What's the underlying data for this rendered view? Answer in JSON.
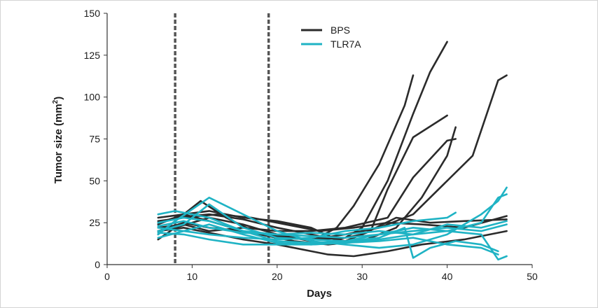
{
  "chart_data": {
    "type": "line",
    "xlabel": "Days",
    "ylabel": "Tumor size (mm",
    "ylabel_superscript": "2",
    "ylabel_close": ")",
    "xlim": [
      0,
      50
    ],
    "ylim": [
      0,
      150
    ],
    "x_ticks": [
      0,
      10,
      20,
      30,
      40,
      50
    ],
    "y_ticks": [
      0,
      25,
      50,
      75,
      100,
      125,
      150
    ],
    "x_tick_labels": [
      "0",
      "10",
      "20",
      "30",
      "40",
      "50"
    ],
    "y_tick_labels": [
      "0",
      "25",
      "50",
      "75",
      "100",
      "125",
      "150"
    ],
    "vertical_markers": [
      8,
      19
    ],
    "legend": [
      {
        "name": "BPS",
        "color": "#2b2b2b"
      },
      {
        "name": "TLR7A",
        "color": "#1fb3c4"
      }
    ],
    "legend_position": "top-center",
    "series": [
      {
        "group": "BPS",
        "points": [
          [
            6,
            15
          ],
          [
            8,
            22
          ],
          [
            12,
            28
          ],
          [
            16,
            24
          ],
          [
            20,
            18
          ],
          [
            24,
            14
          ],
          [
            27,
            22
          ],
          [
            29,
            35
          ],
          [
            32,
            60
          ],
          [
            35,
            95
          ],
          [
            36,
            113
          ]
        ]
      },
      {
        "group": "BPS",
        "points": [
          [
            6,
            20
          ],
          [
            9,
            25
          ],
          [
            12,
            22
          ],
          [
            16,
            20
          ],
          [
            20,
            17
          ],
          [
            24,
            15
          ],
          [
            28,
            16
          ],
          [
            30,
            22
          ],
          [
            33,
            50
          ],
          [
            36,
            90
          ],
          [
            38,
            115
          ],
          [
            40,
            133
          ]
        ]
      },
      {
        "group": "BPS",
        "points": [
          [
            6,
            25
          ],
          [
            8,
            28
          ],
          [
            12,
            30
          ],
          [
            16,
            27
          ],
          [
            20,
            22
          ],
          [
            24,
            18
          ],
          [
            28,
            14
          ],
          [
            31,
            20
          ],
          [
            33,
            45
          ],
          [
            36,
            76
          ],
          [
            40,
            89
          ]
        ]
      },
      {
        "group": "BPS",
        "points": [
          [
            6,
            22
          ],
          [
            9,
            24
          ],
          [
            12,
            20
          ],
          [
            16,
            22
          ],
          [
            20,
            20
          ],
          [
            24,
            20
          ],
          [
            28,
            22
          ],
          [
            33,
            28
          ],
          [
            36,
            52
          ],
          [
            40,
            74
          ],
          [
            41,
            75
          ]
        ]
      },
      {
        "group": "BPS",
        "points": [
          [
            6,
            18
          ],
          [
            8,
            26
          ],
          [
            11,
            38
          ],
          [
            14,
            28
          ],
          [
            18,
            18
          ],
          [
            22,
            14
          ],
          [
            26,
            12
          ],
          [
            30,
            14
          ],
          [
            34,
            22
          ],
          [
            37,
            40
          ],
          [
            40,
            65
          ],
          [
            41,
            82
          ]
        ]
      },
      {
        "group": "BPS",
        "points": [
          [
            6,
            24
          ],
          [
            9,
            30
          ],
          [
            12,
            26
          ],
          [
            16,
            20
          ],
          [
            20,
            16
          ],
          [
            24,
            15
          ],
          [
            28,
            18
          ],
          [
            32,
            22
          ],
          [
            36,
            30
          ],
          [
            40,
            50
          ],
          [
            43,
            65
          ],
          [
            46,
            110
          ],
          [
            47,
            113
          ]
        ]
      },
      {
        "group": "BPS",
        "points": [
          [
            6,
            28
          ],
          [
            9,
            30
          ],
          [
            12,
            32
          ],
          [
            16,
            28
          ],
          [
            20,
            26
          ],
          [
            24,
            22
          ],
          [
            27,
            15
          ],
          [
            30,
            18
          ],
          [
            34,
            28
          ],
          [
            38,
            25
          ],
          [
            42,
            26
          ],
          [
            47,
            27
          ]
        ]
      },
      {
        "group": "BPS",
        "points": [
          [
            6,
            20
          ],
          [
            9,
            22
          ],
          [
            13,
            18
          ],
          [
            16,
            15
          ],
          [
            20,
            12
          ],
          [
            24,
            8
          ],
          [
            26,
            6
          ],
          [
            29,
            5
          ],
          [
            33,
            8
          ],
          [
            37,
            12
          ],
          [
            42,
            15
          ],
          [
            47,
            20
          ]
        ]
      },
      {
        "group": "BPS",
        "points": [
          [
            6,
            26
          ],
          [
            9,
            28
          ],
          [
            13,
            30
          ],
          [
            17,
            28
          ],
          [
            21,
            24
          ],
          [
            25,
            20
          ],
          [
            29,
            22
          ],
          [
            33,
            25
          ],
          [
            37,
            24
          ],
          [
            42,
            22
          ],
          [
            47,
            29
          ]
        ]
      },
      {
        "group": "TLR7A",
        "points": [
          [
            6,
            18
          ],
          [
            8,
            26
          ],
          [
            12,
            40
          ],
          [
            16,
            30
          ],
          [
            20,
            20
          ],
          [
            24,
            14
          ],
          [
            28,
            12
          ],
          [
            32,
            10
          ],
          [
            36,
            12
          ],
          [
            40,
            18
          ],
          [
            44,
            30
          ],
          [
            46,
            38
          ],
          [
            47,
            46
          ]
        ]
      },
      {
        "group": "TLR7A",
        "points": [
          [
            6,
            20
          ],
          [
            9,
            24
          ],
          [
            12,
            36
          ],
          [
            16,
            22
          ],
          [
            20,
            16
          ],
          [
            24,
            15
          ],
          [
            28,
            14
          ],
          [
            32,
            16
          ],
          [
            35,
            22
          ],
          [
            36,
            4
          ],
          [
            38,
            10
          ],
          [
            41,
            14
          ],
          [
            44,
            12
          ],
          [
            46,
            8
          ]
        ]
      },
      {
        "group": "TLR7A",
        "points": [
          [
            6,
            22
          ],
          [
            9,
            20
          ],
          [
            12,
            18
          ],
          [
            16,
            16
          ],
          [
            20,
            15
          ],
          [
            24,
            16
          ],
          [
            28,
            20
          ],
          [
            32,
            22
          ],
          [
            36,
            26
          ],
          [
            40,
            28
          ],
          [
            41,
            31
          ]
        ]
      },
      {
        "group": "TLR7A",
        "points": [
          [
            6,
            30
          ],
          [
            8,
            32
          ],
          [
            12,
            28
          ],
          [
            16,
            20
          ],
          [
            20,
            14
          ],
          [
            24,
            13
          ],
          [
            28,
            14
          ],
          [
            32,
            18
          ],
          [
            36,
            22
          ],
          [
            40,
            20
          ],
          [
            44,
            18
          ],
          [
            46,
            3
          ],
          [
            47,
            5
          ]
        ]
      },
      {
        "group": "TLR7A",
        "points": [
          [
            6,
            16
          ],
          [
            9,
            20
          ],
          [
            12,
            24
          ],
          [
            16,
            18
          ],
          [
            20,
            13
          ],
          [
            24,
            12
          ],
          [
            28,
            13
          ],
          [
            32,
            15
          ],
          [
            36,
            18
          ],
          [
            40,
            20
          ],
          [
            44,
            25
          ],
          [
            46,
            40
          ],
          [
            47,
            42
          ]
        ]
      },
      {
        "group": "TLR7A",
        "points": [
          [
            6,
            25
          ],
          [
            9,
            28
          ],
          [
            12,
            26
          ],
          [
            16,
            20
          ],
          [
            20,
            18
          ],
          [
            24,
            17
          ],
          [
            28,
            16
          ],
          [
            32,
            18
          ],
          [
            36,
            20
          ],
          [
            40,
            22
          ],
          [
            44,
            20
          ],
          [
            47,
            24
          ]
        ]
      },
      {
        "group": "TLR7A",
        "points": [
          [
            6,
            19
          ],
          [
            9,
            18
          ],
          [
            12,
            15
          ],
          [
            16,
            12
          ],
          [
            20,
            12
          ],
          [
            24,
            12
          ],
          [
            28,
            13
          ],
          [
            32,
            14
          ],
          [
            36,
            16
          ],
          [
            40,
            12
          ],
          [
            44,
            10
          ],
          [
            46,
            6
          ]
        ]
      },
      {
        "group": "TLR7A",
        "points": [
          [
            6,
            23
          ],
          [
            9,
            26
          ],
          [
            12,
            22
          ],
          [
            16,
            19
          ],
          [
            20,
            18
          ],
          [
            24,
            19
          ],
          [
            28,
            18
          ],
          [
            32,
            20
          ],
          [
            36,
            18
          ],
          [
            40,
            24
          ],
          [
            44,
            22
          ],
          [
            47,
            26
          ]
        ]
      }
    ]
  }
}
